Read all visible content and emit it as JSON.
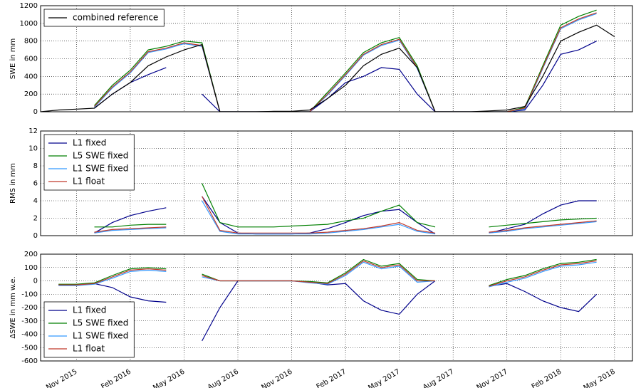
{
  "chart_data": [
    {
      "type": "line",
      "ylabel": "SWE in mm",
      "legend": "upper left",
      "grid": true,
      "xlim": [
        "2015-09",
        "2018-06"
      ],
      "ylim": [
        0,
        1200
      ],
      "yticks": [
        0,
        200,
        400,
        600,
        800,
        1000,
        1200
      ],
      "xticks": [
        "2015-11",
        "2016-02",
        "2016-05",
        "2016-08",
        "2016-11",
        "2017-02",
        "2017-05",
        "2017-08",
        "2017-11",
        "2018-02",
        "2018-05"
      ],
      "x": [
        "2015-09",
        "2015-10",
        "2015-11",
        "2015-12",
        "2016-01",
        "2016-02",
        "2016-03",
        "2016-04",
        "2016-05",
        "2016-06",
        "2016-07",
        "2016-08",
        "2016-09",
        "2016-10",
        "2016-11",
        "2016-12",
        "2017-01",
        "2017-02",
        "2017-03",
        "2017-04",
        "2017-05",
        "2017-06",
        "2017-07",
        "2017-08",
        "2017-09",
        "2017-10",
        "2017-11",
        "2017-12",
        "2018-01",
        "2018-02",
        "2018-03",
        "2018-04",
        "2018-05"
      ],
      "series": [
        {
          "color": "#00008b",
          "values": [
            null,
            null,
            null,
            40,
            200,
            330,
            420,
            500,
            null,
            200,
            0,
            0,
            0,
            0,
            0,
            0,
            150,
            330,
            400,
            500,
            480,
            200,
            0,
            0,
            0,
            0,
            0,
            20,
            300,
            650,
            700,
            800,
            null
          ]
        },
        {
          "color": "#007f00",
          "values": [
            null,
            null,
            null,
            70,
            300,
            470,
            700,
            740,
            800,
            780,
            0,
            0,
            0,
            0,
            0,
            0,
            220,
            440,
            670,
            780,
            840,
            520,
            0,
            0,
            0,
            0,
            0,
            50,
            520,
            980,
            1080,
            1150,
            null
          ]
        },
        {
          "color": "#3399ff",
          "values": [
            null,
            null,
            null,
            50,
            270,
            440,
            670,
            710,
            770,
            740,
            0,
            0,
            0,
            0,
            0,
            0,
            190,
            410,
            640,
            750,
            810,
            490,
            0,
            0,
            0,
            0,
            0,
            30,
            490,
            940,
            1040,
            1110,
            null
          ]
        },
        {
          "color": "#c0392b",
          "values": [
            null,
            null,
            null,
            60,
            280,
            450,
            680,
            720,
            780,
            750,
            0,
            0,
            0,
            0,
            0,
            0,
            200,
            420,
            650,
            760,
            820,
            500,
            0,
            0,
            0,
            0,
            0,
            40,
            500,
            950,
            1050,
            1120,
            null
          ]
        },
        {
          "name": "combined reference",
          "color": "#000000",
          "values": [
            0,
            20,
            30,
            40,
            200,
            330,
            520,
            620,
            700,
            760,
            0,
            0,
            0,
            5,
            5,
            20,
            150,
            300,
            520,
            650,
            720,
            500,
            0,
            0,
            0,
            10,
            20,
            60,
            400,
            800,
            900,
            980,
            850
          ]
        }
      ]
    },
    {
      "type": "line",
      "ylabel": "RMS in mm",
      "legend": "upper left",
      "grid": true,
      "xlim": [
        "2015-09",
        "2018-06"
      ],
      "ylim": [
        0,
        12
      ],
      "yticks": [
        0,
        2,
        4,
        6,
        8,
        10,
        12
      ],
      "xticks": [
        "2015-11",
        "2016-02",
        "2016-05",
        "2016-08",
        "2016-11",
        "2017-02",
        "2017-05",
        "2017-08",
        "2017-11",
        "2018-02",
        "2018-05"
      ],
      "x": [
        "2015-09",
        "2015-10",
        "2015-11",
        "2015-12",
        "2016-01",
        "2016-02",
        "2016-03",
        "2016-04",
        "2016-05",
        "2016-06",
        "2016-07",
        "2016-08",
        "2016-09",
        "2016-10",
        "2016-11",
        "2016-12",
        "2017-01",
        "2017-02",
        "2017-03",
        "2017-04",
        "2017-05",
        "2017-06",
        "2017-07",
        "2017-08",
        "2017-09",
        "2017-10",
        "2017-11",
        "2017-12",
        "2018-01",
        "2018-02",
        "2018-03",
        "2018-04",
        "2018-05"
      ],
      "series": [
        {
          "name": "L1 fixed",
          "color": "#00008b",
          "values": [
            null,
            null,
            null,
            0.3,
            1.5,
            2.3,
            2.8,
            3.2,
            null,
            4.5,
            1.5,
            0.3,
            0.2,
            0.2,
            0.2,
            0.3,
            0.8,
            1.5,
            2.3,
            2.8,
            3.0,
            1.5,
            0.2,
            null,
            null,
            0.3,
            0.8,
            1.3,
            2.5,
            3.5,
            4.0,
            4.0,
            null
          ]
        },
        {
          "name": "L5 SWE fixed",
          "color": "#007f00",
          "values": [
            null,
            null,
            null,
            1.0,
            1.0,
            1.2,
            1.3,
            1.3,
            null,
            6.0,
            1.5,
            1.0,
            1.0,
            1.0,
            1.1,
            1.2,
            1.3,
            1.7,
            2.0,
            2.8,
            3.5,
            1.5,
            1.0,
            null,
            null,
            1.0,
            1.2,
            1.4,
            1.6,
            1.8,
            1.9,
            2.0,
            null
          ]
        },
        {
          "name": "L1 SWE fixed",
          "color": "#3399ff",
          "values": [
            null,
            null,
            null,
            0.3,
            0.6,
            0.7,
            0.8,
            0.9,
            null,
            4.0,
            0.5,
            0.2,
            0.2,
            0.2,
            0.2,
            0.2,
            0.3,
            0.5,
            0.7,
            1.0,
            1.3,
            0.5,
            0.2,
            null,
            null,
            0.3,
            0.5,
            0.8,
            1.0,
            1.2,
            1.4,
            1.6,
            null
          ]
        },
        {
          "name": "L1 float",
          "color": "#c0392b",
          "values": [
            null,
            null,
            null,
            0.4,
            0.7,
            0.8,
            0.9,
            1.0,
            null,
            4.5,
            0.6,
            0.3,
            0.3,
            0.3,
            0.3,
            0.3,
            0.4,
            0.6,
            0.8,
            1.1,
            1.5,
            0.6,
            0.3,
            null,
            null,
            0.4,
            0.6,
            0.9,
            1.1,
            1.3,
            1.5,
            1.7,
            null
          ]
        }
      ]
    },
    {
      "type": "line",
      "ylabel": "ΔSWE in mm w.e.",
      "legend": "lower left",
      "grid": true,
      "xlim": [
        "2015-09",
        "2018-06"
      ],
      "ylim": [
        -600,
        200
      ],
      "yticks": [
        -600,
        -500,
        -400,
        -300,
        -200,
        -100,
        0,
        100,
        200
      ],
      "xticks": [
        {
          "value": "2015-11",
          "label": "Nov 2015"
        },
        {
          "value": "2016-02",
          "label": "Feb 2016"
        },
        {
          "value": "2016-05",
          "label": "May 2016"
        },
        {
          "value": "2016-08",
          "label": "Aug 2016"
        },
        {
          "value": "2016-11",
          "label": "Nov 2016"
        },
        {
          "value": "2017-02",
          "label": "Feb 2017"
        },
        {
          "value": "2017-05",
          "label": "May 2017"
        },
        {
          "value": "2017-08",
          "label": "Aug 2017"
        },
        {
          "value": "2017-11",
          "label": "Nov 2017"
        },
        {
          "value": "2018-02",
          "label": "Feb 2018"
        },
        {
          "value": "2018-05",
          "label": "May 2018"
        }
      ],
      "x": [
        "2015-09",
        "2015-10",
        "2015-11",
        "2015-12",
        "2016-01",
        "2016-02",
        "2016-03",
        "2016-04",
        "2016-05",
        "2016-06",
        "2016-07",
        "2016-08",
        "2016-09",
        "2016-10",
        "2016-11",
        "2016-12",
        "2017-01",
        "2017-02",
        "2017-03",
        "2017-04",
        "2017-05",
        "2017-06",
        "2017-07",
        "2017-08",
        "2017-09",
        "2017-10",
        "2017-11",
        "2017-12",
        "2018-01",
        "2018-02",
        "2018-03",
        "2018-04",
        "2018-05"
      ],
      "series": [
        {
          "name": "L1 fixed",
          "color": "#00008b",
          "values": [
            null,
            -30,
            -30,
            -20,
            -50,
            -120,
            -150,
            -160,
            null,
            -450,
            -200,
            0,
            0,
            0,
            0,
            -10,
            -30,
            -20,
            -150,
            -220,
            -250,
            -100,
            0,
            null,
            null,
            -40,
            -20,
            -80,
            -150,
            -200,
            -230,
            -100,
            null
          ]
        },
        {
          "name": "L5 SWE fixed",
          "color": "#007f00",
          "values": [
            null,
            -25,
            -25,
            -15,
            40,
            90,
            100,
            90,
            null,
            50,
            0,
            0,
            0,
            0,
            0,
            -5,
            -15,
            60,
            160,
            110,
            130,
            10,
            0,
            null,
            null,
            -35,
            10,
            40,
            90,
            130,
            140,
            160,
            null
          ]
        },
        {
          "name": "L1 SWE fixed",
          "color": "#3399ff",
          "values": [
            null,
            -35,
            -35,
            -25,
            20,
            70,
            80,
            70,
            null,
            30,
            0,
            0,
            0,
            0,
            0,
            -15,
            -25,
            40,
            140,
            90,
            110,
            -10,
            0,
            null,
            null,
            -45,
            -10,
            20,
            70,
            110,
            120,
            140,
            null
          ]
        },
        {
          "name": "L1 float",
          "color": "#c0392b",
          "values": [
            null,
            -30,
            -30,
            -20,
            30,
            80,
            90,
            80,
            null,
            40,
            0,
            0,
            0,
            0,
            0,
            -10,
            -20,
            50,
            150,
            100,
            120,
            0,
            0,
            null,
            null,
            -40,
            0,
            30,
            80,
            120,
            130,
            150,
            null
          ]
        }
      ]
    }
  ]
}
